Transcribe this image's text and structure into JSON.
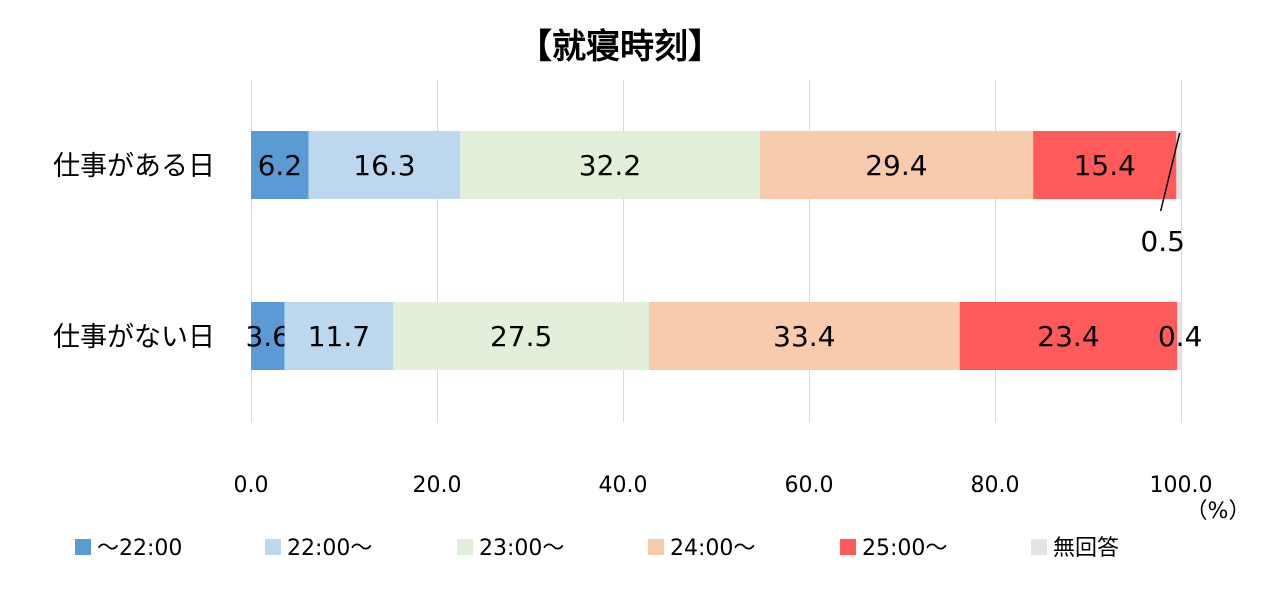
{
  "chart_data": {
    "type": "bar",
    "orientation": "horizontal",
    "stacked": true,
    "title": "【就寝時刻】",
    "unit": "（%）",
    "categories": [
      "仕事がある日",
      "仕事がない日"
    ],
    "series": [
      {
        "name": "～22:00",
        "color": "#5B9BD5",
        "values": [
          6.2,
          3.6
        ],
        "labels": [
          "6.2",
          "3.6"
        ]
      },
      {
        "name": "22:00～",
        "color": "#BDD7EE",
        "values": [
          16.3,
          11.7
        ],
        "labels": [
          "16.3",
          "11.7"
        ]
      },
      {
        "name": "23:00～",
        "color": "#E2EFDA",
        "values": [
          32.2,
          27.5
        ],
        "labels": [
          "32.2",
          "27.5"
        ]
      },
      {
        "name": "24:00～",
        "color": "#F8CBAD",
        "values": [
          29.4,
          33.4
        ],
        "labels": [
          "29.4",
          "33.4"
        ]
      },
      {
        "name": "25:00～",
        "color": "#FF5B5B",
        "values": [
          15.4,
          23.4
        ],
        "labels": [
          "15.4",
          "23.4"
        ]
      },
      {
        "name": "無回答",
        "color": "#E3E3E3",
        "values": [
          0.5,
          0.4
        ],
        "labels": [
          "0.5",
          "0.4"
        ]
      }
    ],
    "xlim": [
      0,
      100
    ],
    "xticks": [
      "0.0",
      "20.0",
      "40.0",
      "60.0",
      "80.0",
      "100.0"
    ],
    "grid": true,
    "legend_position": "bottom"
  }
}
